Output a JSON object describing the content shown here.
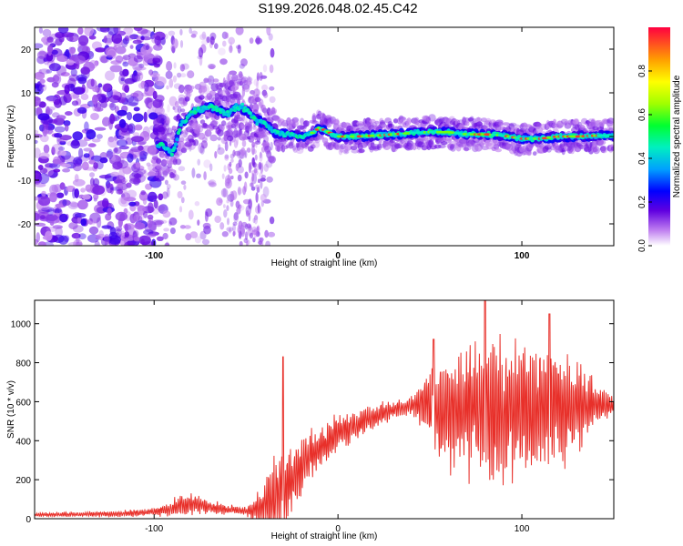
{
  "title": "S199.2026.048.02.45.C42",
  "chart_data": [
    {
      "type": "heatmap",
      "name": "spectrogram",
      "xlabel": "Height of straight line (km)",
      "ylabel": "Frequency (Hz)",
      "xlim": [
        -165,
        150
      ],
      "ylim": [
        -25,
        25
      ],
      "xticks": [
        -100,
        0,
        100
      ],
      "yticks": [
        -20,
        -10,
        0,
        10,
        20
      ],
      "colorbar": {
        "label": "Normalized spectral amplitude",
        "range": [
          0,
          1
        ],
        "ticks": [
          "0.0",
          "0.2",
          "0.4",
          "0.6",
          "0.8"
        ],
        "tick_values": [
          0.0,
          0.2,
          0.4,
          0.6,
          0.8
        ]
      },
      "ridge": {
        "description_points_x": [
          -95,
          -90,
          -85,
          -80,
          -75,
          -70,
          -65,
          -60,
          -55,
          -50,
          -45,
          -40,
          -35,
          -30,
          -25,
          -20,
          -15,
          -10,
          -5,
          0,
          10,
          20,
          30,
          40,
          50,
          60,
          70,
          80,
          90,
          100,
          110,
          120,
          130,
          140,
          150
        ],
        "description_points_y": [
          -2,
          -4,
          3,
          5,
          6,
          7,
          6,
          5,
          7,
          6,
          4,
          3,
          1,
          0.5,
          0.5,
          0,
          0.5,
          2,
          1,
          0,
          0,
          0.2,
          0.5,
          0.8,
          1,
          1,
          0.5,
          0.5,
          0.2,
          -0.5,
          -0.5,
          0,
          0,
          0.2,
          0.2
        ]
      }
    },
    {
      "type": "line",
      "name": "snr",
      "xlabel": "Height of straight line (km)",
      "ylabel": "SNR (10 * v/v)",
      "xlim": [
        -165,
        150
      ],
      "ylim": [
        0,
        1120
      ],
      "xticks": [
        -100,
        0,
        100
      ],
      "yticks": [
        0,
        200,
        400,
        600,
        800,
        1000
      ],
      "color": "#e8302a",
      "envelope_x": [
        -165,
        -120,
        -100,
        -90,
        -85,
        -80,
        -75,
        -70,
        -60,
        -50,
        -40,
        -35,
        -30,
        -25,
        -20,
        -15,
        -10,
        -5,
        0,
        10,
        20,
        30,
        40,
        45,
        50,
        60,
        70,
        80,
        90,
        100,
        110,
        120,
        130,
        140,
        150
      ],
      "envelope_base": [
        20,
        25,
        35,
        55,
        70,
        75,
        70,
        60,
        45,
        40,
        60,
        90,
        150,
        210,
        270,
        320,
        360,
        400,
        440,
        480,
        520,
        560,
        580,
        590,
        570,
        560,
        560,
        560,
        560,
        560,
        560,
        560,
        570,
        580,
        580
      ],
      "envelope_amp": [
        10,
        15,
        20,
        40,
        60,
        50,
        45,
        35,
        25,
        20,
        120,
        300,
        200,
        150,
        130,
        120,
        110,
        100,
        90,
        80,
        60,
        50,
        50,
        120,
        220,
        300,
        330,
        360,
        360,
        340,
        320,
        300,
        250,
        100,
        40
      ],
      "peaks": [
        {
          "x": 80,
          "y": 1120
        },
        {
          "x": -30,
          "y": 830
        },
        {
          "x": 52,
          "y": 920
        },
        {
          "x": 115,
          "y": 1050
        }
      ]
    }
  ]
}
